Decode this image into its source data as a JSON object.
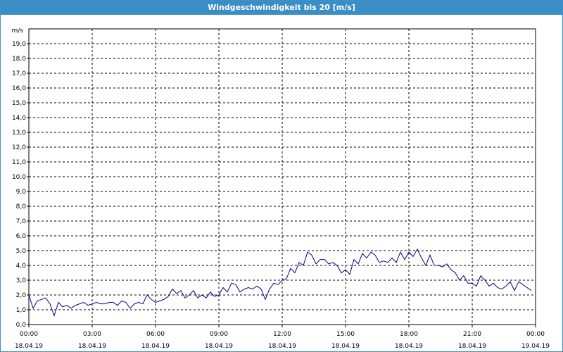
{
  "window": {
    "title": "Windgeschwindigkeit bis 20 [m/s]"
  },
  "chart_data": {
    "type": "line",
    "title": "Windgeschwindigkeit bis 20 [m/s]",
    "ylabel": "m/s",
    "xlabel": "",
    "ylim": [
      0,
      20
    ],
    "xlim_hours": [
      0,
      24
    ],
    "yticks": [
      "0,0",
      "1,0",
      "2,0",
      "3,0",
      "4,0",
      "5,0",
      "6,0",
      "7,0",
      "8,0",
      "9,0",
      "10,0",
      "11,0",
      "12,0",
      "13,0",
      "14,0",
      "15,0",
      "16,0",
      "17,0",
      "18,0",
      "19,0"
    ],
    "xticks": [
      {
        "time": "00:00",
        "date": "18.04.19"
      },
      {
        "time": "03:00",
        "date": "18.04.19"
      },
      {
        "time": "06:00",
        "date": "18.04.19"
      },
      {
        "time": "09:00",
        "date": "18.04.19"
      },
      {
        "time": "12:00",
        "date": "18.04.19"
      },
      {
        "time": "15:00",
        "date": "18.04.19"
      },
      {
        "time": "18:00",
        "date": "18.04.19"
      },
      {
        "time": "21:00",
        "date": "18.04.19"
      },
      {
        "time": "00:00",
        "date": "19.04.19"
      }
    ],
    "grid": true,
    "colors": {
      "line": "#00008b",
      "grid": "#000000",
      "title_bar": "#3b8dc6"
    },
    "series": [
      {
        "x": [
          0.0,
          0.2,
          0.4,
          0.6,
          0.8,
          1.0,
          1.2,
          1.4,
          1.6,
          1.8,
          2.0,
          2.2,
          2.4,
          2.6,
          2.8,
          3.0,
          3.2,
          3.4,
          3.6,
          3.8,
          4.0,
          4.2,
          4.4,
          4.6,
          4.8,
          5.0,
          5.2,
          5.4,
          5.6,
          5.8,
          6.0,
          6.2,
          6.4,
          6.6,
          6.8,
          7.0,
          7.2,
          7.4,
          7.6,
          7.8,
          8.0,
          8.2,
          8.4,
          8.6,
          8.8,
          9.0,
          9.2,
          9.4,
          9.6,
          9.8,
          10.0,
          10.2,
          10.4,
          10.6,
          10.8,
          11.0,
          11.2,
          11.4,
          11.6,
          11.8,
          12.0,
          12.2,
          12.4,
          12.6,
          12.8,
          13.0,
          13.2,
          13.4,
          13.6,
          13.8,
          14.0,
          14.2,
          14.4,
          14.6,
          14.8,
          15.0,
          15.2,
          15.4,
          15.6,
          15.8,
          16.0,
          16.2,
          16.4,
          16.6,
          16.8,
          17.0,
          17.2,
          17.4,
          17.6,
          17.8,
          18.0,
          18.2,
          18.4,
          18.6,
          18.8,
          19.0,
          19.2,
          19.4,
          19.6,
          19.8,
          20.0,
          20.2,
          20.4,
          20.6,
          20.8,
          21.0,
          21.2,
          21.4,
          21.6,
          21.8,
          22.0,
          22.2,
          22.4,
          22.6,
          22.8,
          23.0,
          23.2,
          23.4,
          23.6,
          23.8
        ],
        "values": [
          2.0,
          1.1,
          1.6,
          1.7,
          1.8,
          1.4,
          0.6,
          1.5,
          1.2,
          1.3,
          1.1,
          1.3,
          1.4,
          1.5,
          1.3,
          1.4,
          1.5,
          1.4,
          1.4,
          1.5,
          1.5,
          1.3,
          1.6,
          1.5,
          1.1,
          1.4,
          1.5,
          1.4,
          2.0,
          1.7,
          1.5,
          1.6,
          1.7,
          1.9,
          2.4,
          2.1,
          2.3,
          1.8,
          2.0,
          2.3,
          1.8,
          2.0,
          1.8,
          2.2,
          1.9,
          2.0,
          2.5,
          2.2,
          2.8,
          2.7,
          2.2,
          2.4,
          2.5,
          2.4,
          2.6,
          2.4,
          1.7,
          2.4,
          2.8,
          2.7,
          3.0,
          3.1,
          3.8,
          3.5,
          4.2,
          4.0,
          4.9,
          4.7,
          4.1,
          4.4,
          4.4,
          4.1,
          4.2,
          4.0,
          3.5,
          3.7,
          3.4,
          4.4,
          4.1,
          4.8,
          4.5,
          4.9,
          4.7,
          4.2,
          4.3,
          4.2,
          4.5,
          4.2,
          4.9,
          4.4,
          4.9,
          4.6,
          5.1,
          4.5,
          4.0,
          4.7,
          4.0,
          4.0,
          3.9,
          4.1,
          3.7,
          3.5,
          3.0,
          3.3,
          2.8,
          2.8,
          2.6,
          3.3,
          3.0,
          2.6,
          2.8,
          2.5,
          2.4,
          2.6,
          2.9,
          2.3,
          2.9,
          2.7,
          2.5,
          2.3
        ]
      }
    ]
  }
}
